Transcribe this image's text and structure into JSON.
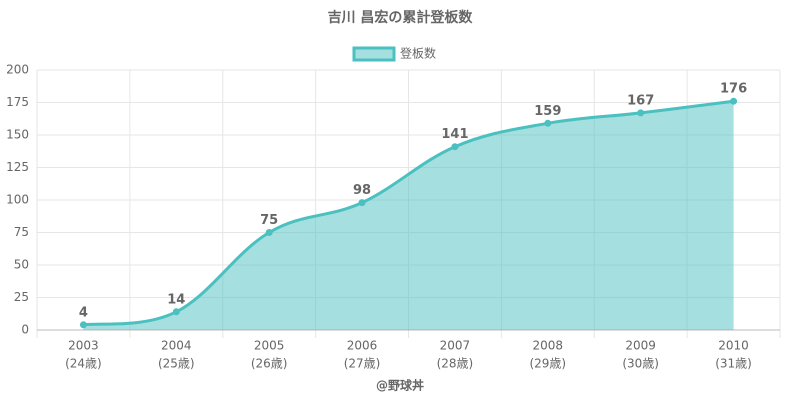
{
  "chart_data": {
    "type": "area",
    "title": "吉川 昌宏の累計登板数",
    "categories": [
      [
        "2003",
        "(24歳)"
      ],
      [
        "2004",
        "(25歳)"
      ],
      [
        "2005",
        "(26歳)"
      ],
      [
        "2006",
        "(27歳)"
      ],
      [
        "2007",
        "(28歳)"
      ],
      [
        "2008",
        "(29歳)"
      ],
      [
        "2009",
        "(30歳)"
      ],
      [
        "2010",
        "(31歳)"
      ]
    ],
    "series": [
      {
        "name": "登板数",
        "color": "#4bc0c0",
        "values": [
          4,
          14,
          75,
          98,
          141,
          159,
          167,
          176
        ]
      }
    ],
    "ylim": [
      0,
      200
    ],
    "yticks": [
      0,
      25,
      50,
      75,
      100,
      125,
      150,
      175,
      200
    ],
    "grid": true,
    "legend": "top",
    "footer": "@野球丼"
  }
}
